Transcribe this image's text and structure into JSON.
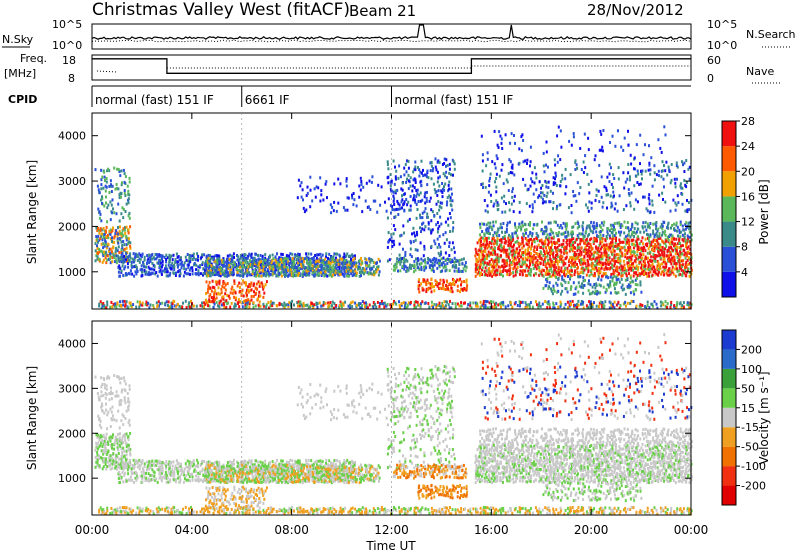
{
  "header": {
    "station": "Christmas Valley West (fitACF)",
    "beam": "Beam 21",
    "date": "28/Nov/2012"
  },
  "noise_panel": {
    "left_label": "N.Sky",
    "right_label": "N.Search",
    "ticks_left": [
      "10^5",
      "10^0"
    ],
    "ticks_right": [
      "10^5",
      "10^0"
    ]
  },
  "freq_panel": {
    "left_label_1": "Freq.",
    "left_label_2": "[MHz]",
    "right_label": "Nave",
    "ticks_left": [
      "18",
      "8"
    ],
    "ticks_right": [
      "60",
      "0"
    ],
    "freq_steps": [
      {
        "t0": 0,
        "t1": 3.0,
        "mhz": 16.5
      },
      {
        "t0": 3.0,
        "t1": 15.2,
        "mhz": 10.7
      },
      {
        "t0": 15.2,
        "t1": 24,
        "mhz": 16.5
      }
    ]
  },
  "cpid": {
    "label": "CPID",
    "segments": [
      {
        "start": 0,
        "label": "normal (fast) 151 IF"
      },
      {
        "start": 6.0,
        "label": "6661 IF"
      },
      {
        "start": 12.0,
        "label": "normal (fast) 151 IF"
      }
    ]
  },
  "chart_data": [
    {
      "type": "heatmap",
      "title": "",
      "xlabel": "Time UT",
      "ylabel": "Slant Range [km]",
      "xlim": [
        0,
        24
      ],
      "ylim": [
        180,
        4500
      ],
      "x_ticks": [
        "00:00",
        "04:00",
        "08:00",
        "12:00",
        "16:00",
        "20:00",
        "00:00"
      ],
      "y_ticks": [
        "1000",
        "2000",
        "3000",
        "4000"
      ],
      "colorbar": {
        "label": "Power [dB]",
        "ticks": [
          "4",
          "8",
          "12",
          "16",
          "20",
          "24",
          "28"
        ],
        "colors": [
          "#1010e8",
          "#2a50d8",
          "#3a8a8a",
          "#5ab85a",
          "#f0a000",
          "#ff5a00",
          "#f01010"
        ]
      }
    },
    {
      "type": "heatmap",
      "title": "",
      "xlabel": "Time UT",
      "ylabel": "Slant Range [km]",
      "xlim": [
        0,
        24
      ],
      "ylim": [
        180,
        4500
      ],
      "x_ticks": [
        "00:00",
        "04:00",
        "08:00",
        "12:00",
        "16:00",
        "20:00",
        "00:00"
      ],
      "y_ticks": [
        "1000",
        "2000",
        "3000",
        "4000"
      ],
      "colorbar": {
        "label": "Velocity [m s⁻¹]",
        "ticks": [
          "200",
          "100",
          "50",
          "15",
          "-15",
          "-50",
          "-100",
          "-200"
        ],
        "colors": [
          "#1a3ad0",
          "#2a6ac8",
          "#3aa03a",
          "#6ad04a",
          "#c8c8c8",
          "#f0a020",
          "#f07000",
          "#f03010",
          "#e00000"
        ]
      }
    }
  ]
}
